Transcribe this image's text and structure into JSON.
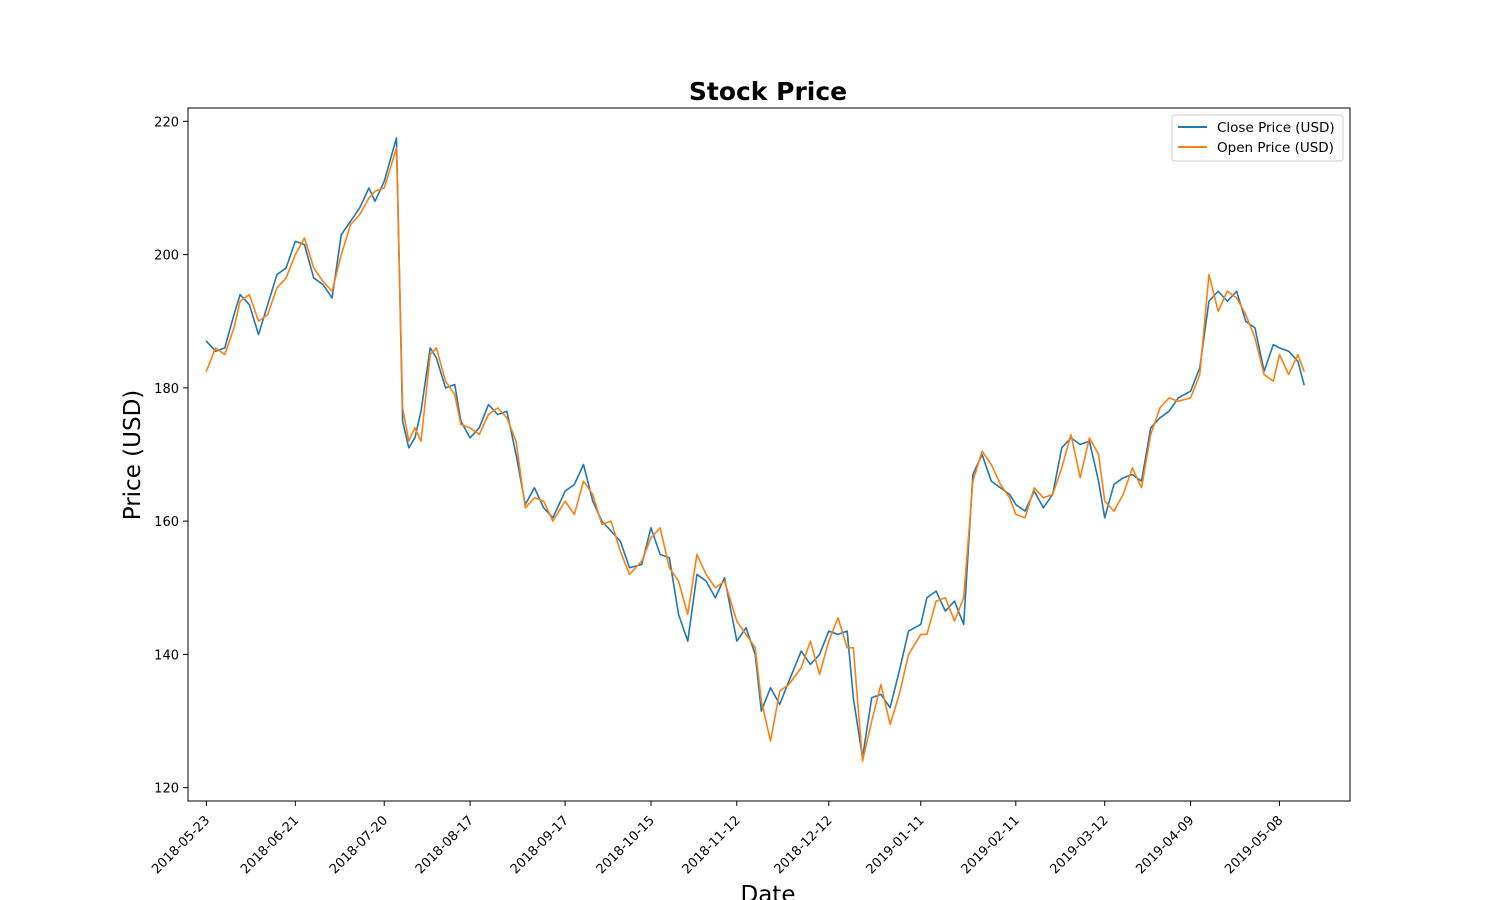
{
  "chart_data": {
    "type": "line",
    "title": "Stock Price",
    "xlabel": "Date",
    "ylabel": "Price (USD)",
    "xlim": [
      "2018-05-17",
      "2019-05-31"
    ],
    "ylim": [
      118,
      222
    ],
    "yticks": [
      120,
      140,
      160,
      180,
      200,
      220
    ],
    "xticks": [
      "2018-05-23",
      "2018-06-21",
      "2018-07-20",
      "2018-08-17",
      "2018-09-17",
      "2018-10-15",
      "2018-11-12",
      "2018-12-12",
      "2019-01-11",
      "2019-02-11",
      "2019-03-12",
      "2019-04-09",
      "2019-05-08"
    ],
    "legend_position": "top-right",
    "grid": false,
    "series": [
      {
        "name": "Close Price (USD)",
        "color": "#1f77b4",
        "points": [
          [
            "2018-05-23",
            187.0
          ],
          [
            "2018-05-26",
            185.5
          ],
          [
            "2018-05-29",
            186.0
          ],
          [
            "2018-06-01",
            191.0
          ],
          [
            "2018-06-03",
            194.0
          ],
          [
            "2018-06-06",
            192.5
          ],
          [
            "2018-06-09",
            188.0
          ],
          [
            "2018-06-12",
            192.5
          ],
          [
            "2018-06-15",
            197.0
          ],
          [
            "2018-06-18",
            198.0
          ],
          [
            "2018-06-21",
            202.0
          ],
          [
            "2018-06-24",
            201.5
          ],
          [
            "2018-06-27",
            196.5
          ],
          [
            "2018-06-30",
            195.5
          ],
          [
            "2018-07-03",
            193.5
          ],
          [
            "2018-07-06",
            203.0
          ],
          [
            "2018-07-09",
            205.0
          ],
          [
            "2018-07-12",
            207.0
          ],
          [
            "2018-07-15",
            210.0
          ],
          [
            "2018-07-17",
            208.0
          ],
          [
            "2018-07-20",
            211.0
          ],
          [
            "2018-07-24",
            217.5
          ],
          [
            "2018-07-26",
            175.0
          ],
          [
            "2018-07-28",
            171.0
          ],
          [
            "2018-07-30",
            172.5
          ],
          [
            "2018-08-01",
            176.5
          ],
          [
            "2018-08-04",
            186.0
          ],
          [
            "2018-08-06",
            184.5
          ],
          [
            "2018-08-09",
            180.0
          ],
          [
            "2018-08-12",
            180.5
          ],
          [
            "2018-08-14",
            175.0
          ],
          [
            "2018-08-17",
            172.5
          ],
          [
            "2018-08-20",
            174.0
          ],
          [
            "2018-08-23",
            177.5
          ],
          [
            "2018-08-26",
            176.0
          ],
          [
            "2018-08-29",
            176.5
          ],
          [
            "2018-09-01",
            170.0
          ],
          [
            "2018-09-04",
            162.5
          ],
          [
            "2018-09-07",
            165.0
          ],
          [
            "2018-09-10",
            162.0
          ],
          [
            "2018-09-13",
            160.5
          ],
          [
            "2018-09-17",
            164.5
          ],
          [
            "2018-09-20",
            165.5
          ],
          [
            "2018-09-23",
            168.5
          ],
          [
            "2018-09-26",
            163.0
          ],
          [
            "2018-09-29",
            160.0
          ],
          [
            "2018-10-02",
            158.5
          ],
          [
            "2018-10-05",
            157.0
          ],
          [
            "2018-10-08",
            153.0
          ],
          [
            "2018-10-12",
            153.5
          ],
          [
            "2018-10-15",
            159.0
          ],
          [
            "2018-10-18",
            155.0
          ],
          [
            "2018-10-21",
            154.5
          ],
          [
            "2018-10-24",
            146.0
          ],
          [
            "2018-10-27",
            142.0
          ],
          [
            "2018-10-30",
            152.0
          ],
          [
            "2018-11-02",
            151.0
          ],
          [
            "2018-11-05",
            148.5
          ],
          [
            "2018-11-08",
            151.5
          ],
          [
            "2018-11-12",
            142.0
          ],
          [
            "2018-11-15",
            144.0
          ],
          [
            "2018-11-18",
            140.0
          ],
          [
            "2018-11-20",
            131.5
          ],
          [
            "2018-11-23",
            135.0
          ],
          [
            "2018-11-26",
            132.5
          ],
          [
            "2018-11-29",
            136.0
          ],
          [
            "2018-12-03",
            140.5
          ],
          [
            "2018-12-06",
            138.5
          ],
          [
            "2018-12-09",
            140.0
          ],
          [
            "2018-12-12",
            143.5
          ],
          [
            "2018-12-15",
            143.0
          ],
          [
            "2018-12-18",
            143.5
          ],
          [
            "2018-12-20",
            133.5
          ],
          [
            "2018-12-23",
            124.5
          ],
          [
            "2018-12-26",
            133.5
          ],
          [
            "2018-12-29",
            134.0
          ],
          [
            "2019-01-01",
            132.0
          ],
          [
            "2019-01-04",
            137.5
          ],
          [
            "2019-01-07",
            143.5
          ],
          [
            "2019-01-11",
            144.5
          ],
          [
            "2019-01-13",
            148.5
          ],
          [
            "2019-01-16",
            149.5
          ],
          [
            "2019-01-19",
            146.5
          ],
          [
            "2019-01-22",
            148.0
          ],
          [
            "2019-01-25",
            144.5
          ],
          [
            "2019-01-28",
            167.0
          ],
          [
            "2019-01-31",
            170.0
          ],
          [
            "2019-02-03",
            166.0
          ],
          [
            "2019-02-06",
            165.0
          ],
          [
            "2019-02-09",
            164.0
          ],
          [
            "2019-02-11",
            162.5
          ],
          [
            "2019-02-14",
            161.5
          ],
          [
            "2019-02-17",
            164.5
          ],
          [
            "2019-02-20",
            162.0
          ],
          [
            "2019-02-23",
            164.0
          ],
          [
            "2019-02-26",
            171.0
          ],
          [
            "2019-03-01",
            172.5
          ],
          [
            "2019-03-04",
            171.5
          ],
          [
            "2019-03-07",
            172.0
          ],
          [
            "2019-03-10",
            166.0
          ],
          [
            "2019-03-12",
            160.5
          ],
          [
            "2019-03-15",
            165.5
          ],
          [
            "2019-03-18",
            166.5
          ],
          [
            "2019-03-21",
            167.0
          ],
          [
            "2019-03-24",
            166.0
          ],
          [
            "2019-03-27",
            174.0
          ],
          [
            "2019-03-30",
            175.5
          ],
          [
            "2019-04-02",
            176.5
          ],
          [
            "2019-04-05",
            178.5
          ],
          [
            "2019-04-09",
            179.5
          ],
          [
            "2019-04-12",
            183.0
          ],
          [
            "2019-04-15",
            193.0
          ],
          [
            "2019-04-18",
            194.5
          ],
          [
            "2019-04-21",
            193.0
          ],
          [
            "2019-04-24",
            194.5
          ],
          [
            "2019-04-27",
            190.0
          ],
          [
            "2019-04-30",
            189.0
          ],
          [
            "2019-05-03",
            182.5
          ],
          [
            "2019-05-06",
            186.5
          ],
          [
            "2019-05-08",
            186.0
          ],
          [
            "2019-05-11",
            185.5
          ],
          [
            "2019-05-14",
            184.0
          ],
          [
            "2019-05-16",
            180.5
          ]
        ]
      },
      {
        "name": "Open Price (USD)",
        "color": "#ff7f0e",
        "points": [
          [
            "2018-05-23",
            182.5
          ],
          [
            "2018-05-26",
            186.0
          ],
          [
            "2018-05-29",
            185.0
          ],
          [
            "2018-06-01",
            189.0
          ],
          [
            "2018-06-03",
            193.0
          ],
          [
            "2018-06-06",
            194.0
          ],
          [
            "2018-06-09",
            190.0
          ],
          [
            "2018-06-12",
            191.0
          ],
          [
            "2018-06-15",
            195.0
          ],
          [
            "2018-06-18",
            196.5
          ],
          [
            "2018-06-21",
            200.0
          ],
          [
            "2018-06-24",
            202.5
          ],
          [
            "2018-06-27",
            198.0
          ],
          [
            "2018-06-30",
            196.0
          ],
          [
            "2018-07-03",
            194.5
          ],
          [
            "2018-07-06",
            200.0
          ],
          [
            "2018-07-09",
            204.5
          ],
          [
            "2018-07-12",
            206.0
          ],
          [
            "2018-07-15",
            208.5
          ],
          [
            "2018-07-17",
            209.5
          ],
          [
            "2018-07-20",
            210.0
          ],
          [
            "2018-07-24",
            216.0
          ],
          [
            "2018-07-26",
            177.0
          ],
          [
            "2018-07-28",
            172.0
          ],
          [
            "2018-07-30",
            174.0
          ],
          [
            "2018-08-01",
            172.0
          ],
          [
            "2018-08-04",
            185.0
          ],
          [
            "2018-08-06",
            186.0
          ],
          [
            "2018-08-09",
            181.0
          ],
          [
            "2018-08-12",
            179.0
          ],
          [
            "2018-08-14",
            174.5
          ],
          [
            "2018-08-17",
            174.0
          ],
          [
            "2018-08-20",
            173.0
          ],
          [
            "2018-08-23",
            176.0
          ],
          [
            "2018-08-26",
            177.0
          ],
          [
            "2018-08-29",
            175.5
          ],
          [
            "2018-09-01",
            172.0
          ],
          [
            "2018-09-04",
            162.0
          ],
          [
            "2018-09-07",
            163.5
          ],
          [
            "2018-09-10",
            163.0
          ],
          [
            "2018-09-13",
            160.0
          ],
          [
            "2018-09-17",
            163.0
          ],
          [
            "2018-09-20",
            161.0
          ],
          [
            "2018-09-23",
            166.0
          ],
          [
            "2018-09-26",
            164.0
          ],
          [
            "2018-09-29",
            159.5
          ],
          [
            "2018-10-02",
            160.0
          ],
          [
            "2018-10-05",
            155.5
          ],
          [
            "2018-10-08",
            152.0
          ],
          [
            "2018-10-12",
            154.0
          ],
          [
            "2018-10-15",
            157.5
          ],
          [
            "2018-10-18",
            159.0
          ],
          [
            "2018-10-21",
            153.0
          ],
          [
            "2018-10-24",
            151.0
          ],
          [
            "2018-10-27",
            146.0
          ],
          [
            "2018-10-30",
            155.0
          ],
          [
            "2018-11-02",
            152.0
          ],
          [
            "2018-11-05",
            150.0
          ],
          [
            "2018-11-08",
            151.0
          ],
          [
            "2018-11-12",
            145.0
          ],
          [
            "2018-11-15",
            143.0
          ],
          [
            "2018-11-18",
            141.0
          ],
          [
            "2018-11-20",
            133.0
          ],
          [
            "2018-11-23",
            127.0
          ],
          [
            "2018-11-26",
            134.5
          ],
          [
            "2018-11-29",
            135.5
          ],
          [
            "2018-12-03",
            138.0
          ],
          [
            "2018-12-06",
            142.0
          ],
          [
            "2018-12-09",
            137.0
          ],
          [
            "2018-12-12",
            142.0
          ],
          [
            "2018-12-15",
            145.5
          ],
          [
            "2018-12-18",
            141.0
          ],
          [
            "2018-12-20",
            141.0
          ],
          [
            "2018-12-23",
            124.0
          ],
          [
            "2018-12-26",
            130.0
          ],
          [
            "2018-12-29",
            135.5
          ],
          [
            "2019-01-01",
            129.5
          ],
          [
            "2019-01-04",
            134.0
          ],
          [
            "2019-01-07",
            140.0
          ],
          [
            "2019-01-11",
            143.0
          ],
          [
            "2019-01-13",
            143.0
          ],
          [
            "2019-01-16",
            148.0
          ],
          [
            "2019-01-19",
            148.5
          ],
          [
            "2019-01-22",
            145.0
          ],
          [
            "2019-01-25",
            148.5
          ],
          [
            "2019-01-28",
            166.0
          ],
          [
            "2019-01-31",
            170.5
          ],
          [
            "2019-02-03",
            168.5
          ],
          [
            "2019-02-06",
            165.5
          ],
          [
            "2019-02-09",
            163.5
          ],
          [
            "2019-02-11",
            161.0
          ],
          [
            "2019-02-14",
            160.5
          ],
          [
            "2019-02-17",
            165.0
          ],
          [
            "2019-02-20",
            163.5
          ],
          [
            "2019-02-23",
            164.0
          ],
          [
            "2019-02-26",
            168.0
          ],
          [
            "2019-03-01",
            173.0
          ],
          [
            "2019-03-04",
            166.5
          ],
          [
            "2019-03-07",
            172.5
          ],
          [
            "2019-03-10",
            170.0
          ],
          [
            "2019-03-12",
            163.0
          ],
          [
            "2019-03-15",
            161.5
          ],
          [
            "2019-03-18",
            164.0
          ],
          [
            "2019-03-21",
            168.0
          ],
          [
            "2019-03-24",
            165.0
          ],
          [
            "2019-03-27",
            173.0
          ],
          [
            "2019-03-30",
            177.0
          ],
          [
            "2019-04-02",
            178.5
          ],
          [
            "2019-04-05",
            178.0
          ],
          [
            "2019-04-09",
            178.5
          ],
          [
            "2019-04-12",
            182.0
          ],
          [
            "2019-04-15",
            197.0
          ],
          [
            "2019-04-18",
            191.5
          ],
          [
            "2019-04-21",
            194.5
          ],
          [
            "2019-04-24",
            193.5
          ],
          [
            "2019-04-27",
            191.0
          ],
          [
            "2019-04-30",
            187.5
          ],
          [
            "2019-05-03",
            182.0
          ],
          [
            "2019-05-06",
            181.0
          ],
          [
            "2019-05-08",
            185.0
          ],
          [
            "2019-05-11",
            182.0
          ],
          [
            "2019-05-14",
            185.0
          ],
          [
            "2019-05-16",
            182.5
          ]
        ]
      }
    ]
  }
}
